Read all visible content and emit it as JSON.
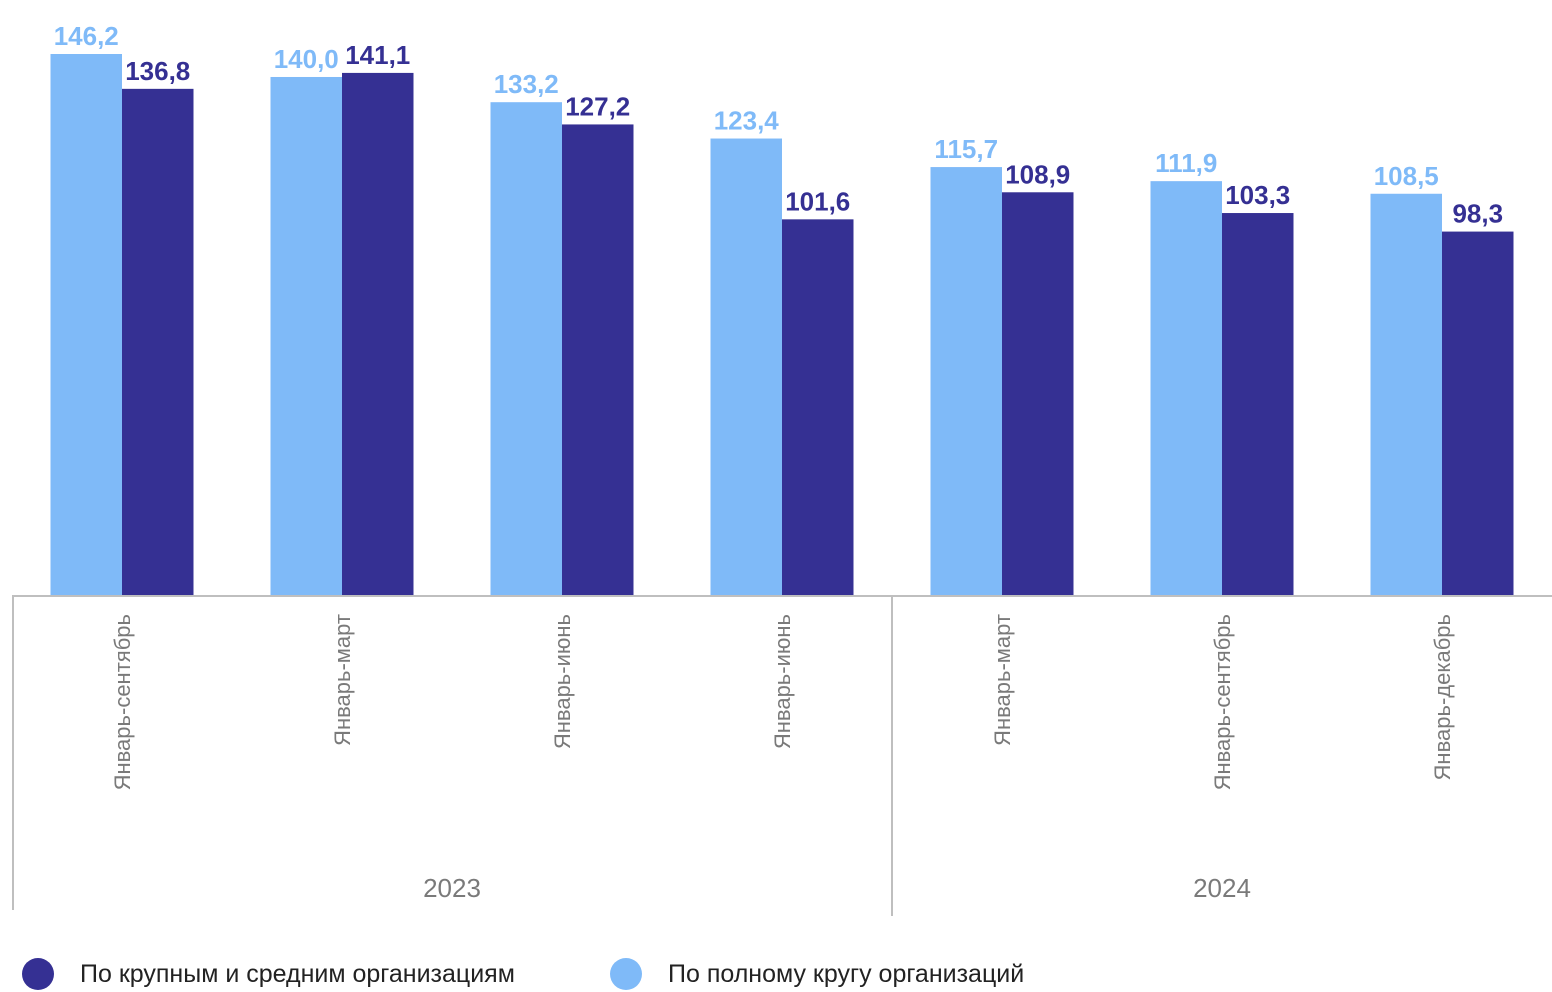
{
  "chart_data": {
    "type": "bar",
    "categories": [
      "Январь-сентябрь",
      "Январь-март",
      "Январь-июнь",
      "Январь-июнь",
      "Январь-март",
      "Январь-сентябрь",
      "Январь-декабрь"
    ],
    "groups": [
      {
        "label": "2023",
        "count": 4
      },
      {
        "label": "2024",
        "count": 3
      }
    ],
    "series": [
      {
        "name": "По полному кругу организаций",
        "color": "#7fbaf8",
        "values": [
          146.2,
          140.0,
          133.2,
          123.4,
          115.7,
          111.9,
          108.5
        ],
        "labels": [
          "146,2",
          "140,0",
          "133,2",
          "123,4",
          "115,7",
          "111,9",
          "108,5"
        ]
      },
      {
        "name": "По крупным и средним организациям",
        "color": "#353093",
        "values": [
          136.8,
          141.1,
          127.2,
          101.6,
          108.9,
          103.3,
          98.3
        ],
        "labels": [
          "136,8",
          "141,1",
          "127,2",
          "101,6",
          "108,9",
          "103,3",
          "98,3"
        ]
      }
    ],
    "ylim": [
      0,
      146.2
    ],
    "grid": false,
    "legend_position": "bottom"
  },
  "legend": [
    {
      "label": "По крупным и средним организациям",
      "color": "#353093"
    },
    {
      "label": "По полному кругу организаций",
      "color": "#7fbaf8"
    }
  ]
}
